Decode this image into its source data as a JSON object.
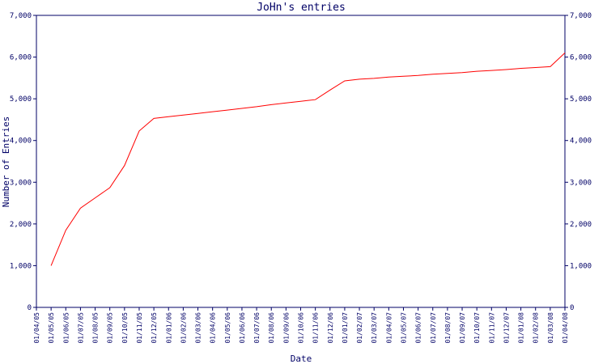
{
  "chart_data": {
    "type": "line",
    "title": "JoHn's entries",
    "x_label": "Date",
    "y_label": "Number of Entries",
    "categories": [
      "01/04/05",
      "01/05/05",
      "01/06/05",
      "01/07/05",
      "01/08/05",
      "01/09/05",
      "01/10/05",
      "01/11/05",
      "01/12/05",
      "01/01/06",
      "01/02/06",
      "01/03/06",
      "01/04/06",
      "01/05/06",
      "01/06/06",
      "01/07/06",
      "01/08/06",
      "01/09/06",
      "01/10/06",
      "01/11/06",
      "01/12/06",
      "01/01/07",
      "01/02/07",
      "01/03/07",
      "01/04/07",
      "01/05/07",
      "01/06/07",
      "01/07/07",
      "01/08/07",
      "01/09/07",
      "01/10/07",
      "01/11/07",
      "01/12/07",
      "01/01/08",
      "01/02/08",
      "01/03/08",
      "01/04/08"
    ],
    "series": [
      {
        "name": "entries",
        "color": "#ff0000",
        "values": [
          null,
          1000,
          1850,
          2380,
          2625,
          2870,
          3400,
          4230,
          4530,
          4570,
          4610,
          4650,
          4690,
          4730,
          4770,
          4810,
          4860,
          4900,
          4940,
          4980,
          5210,
          5430,
          5470,
          5490,
          5520,
          5540,
          5560,
          5590,
          5610,
          5630,
          5660,
          5680,
          5700,
          5730,
          5750,
          5770,
          6100
        ]
      }
    ],
    "ylim": [
      0,
      7000
    ],
    "yticks": [
      0,
      {
        "value": 1000,
        "label": "1,000"
      },
      {
        "value": 2000,
        "label": "2,000"
      },
      {
        "value": 3000,
        "label": "3,000"
      },
      {
        "value": 4000,
        "label": "4,000"
      },
      {
        "value": 5000,
        "label": "5,000"
      },
      {
        "value": 6000,
        "label": "6,000"
      },
      {
        "value": 7000,
        "label": "7,000"
      }
    ]
  }
}
